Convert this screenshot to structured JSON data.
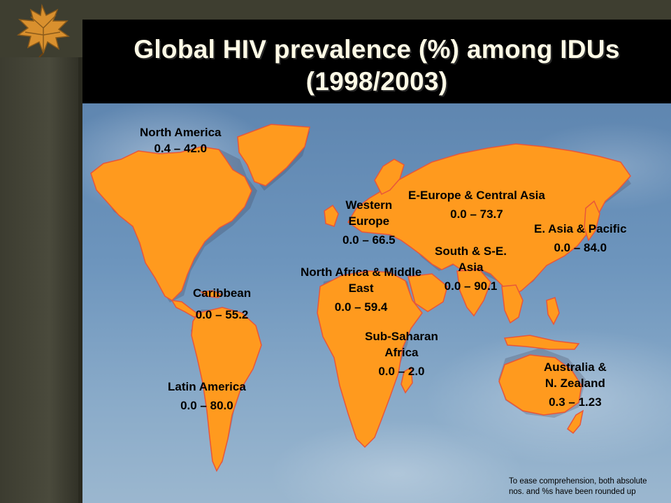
{
  "slide": {
    "title_line1": "Global HIV prevalence (%) among IDUs",
    "title_line2": "(1998/2003)"
  },
  "regions": [
    {
      "name": "North America",
      "range": "0.4 – 42.0"
    },
    {
      "name": "Caribbean",
      "range": "0.0 – 55.2"
    },
    {
      "name": "Latin America",
      "range": "0.0 – 80.0"
    },
    {
      "name_line1": "Western",
      "name_line2": "Europe",
      "range": "0.0 – 66.5"
    },
    {
      "name_line1": "North Africa & Middle",
      "name_line2": "East",
      "range": "0.0 – 59.4"
    },
    {
      "name_line1": "Sub-Saharan",
      "name_line2": "Africa",
      "range": "0.0 – 2.0"
    },
    {
      "name": "E-Europe & Central Asia",
      "range": "0.0 – 73.7"
    },
    {
      "name_line1": "South & S-E.",
      "name_line2": "Asia",
      "range": "0.0 – 90.1"
    },
    {
      "name": "E. Asia & Pacific",
      "range": "0.0 – 84.0"
    },
    {
      "name_line1": "Australia &",
      "name_line2": "N. Zealand",
      "range": "0.3 – 1.23"
    }
  ],
  "footnote": {
    "line1": "To ease comprehension, both absolute",
    "line2": "nos. and %s have been rounded up"
  },
  "colors": {
    "land": "#ff9a1e",
    "coast": "#e8563a",
    "title_bg": "#000000",
    "title_text": "#fffbe6"
  }
}
